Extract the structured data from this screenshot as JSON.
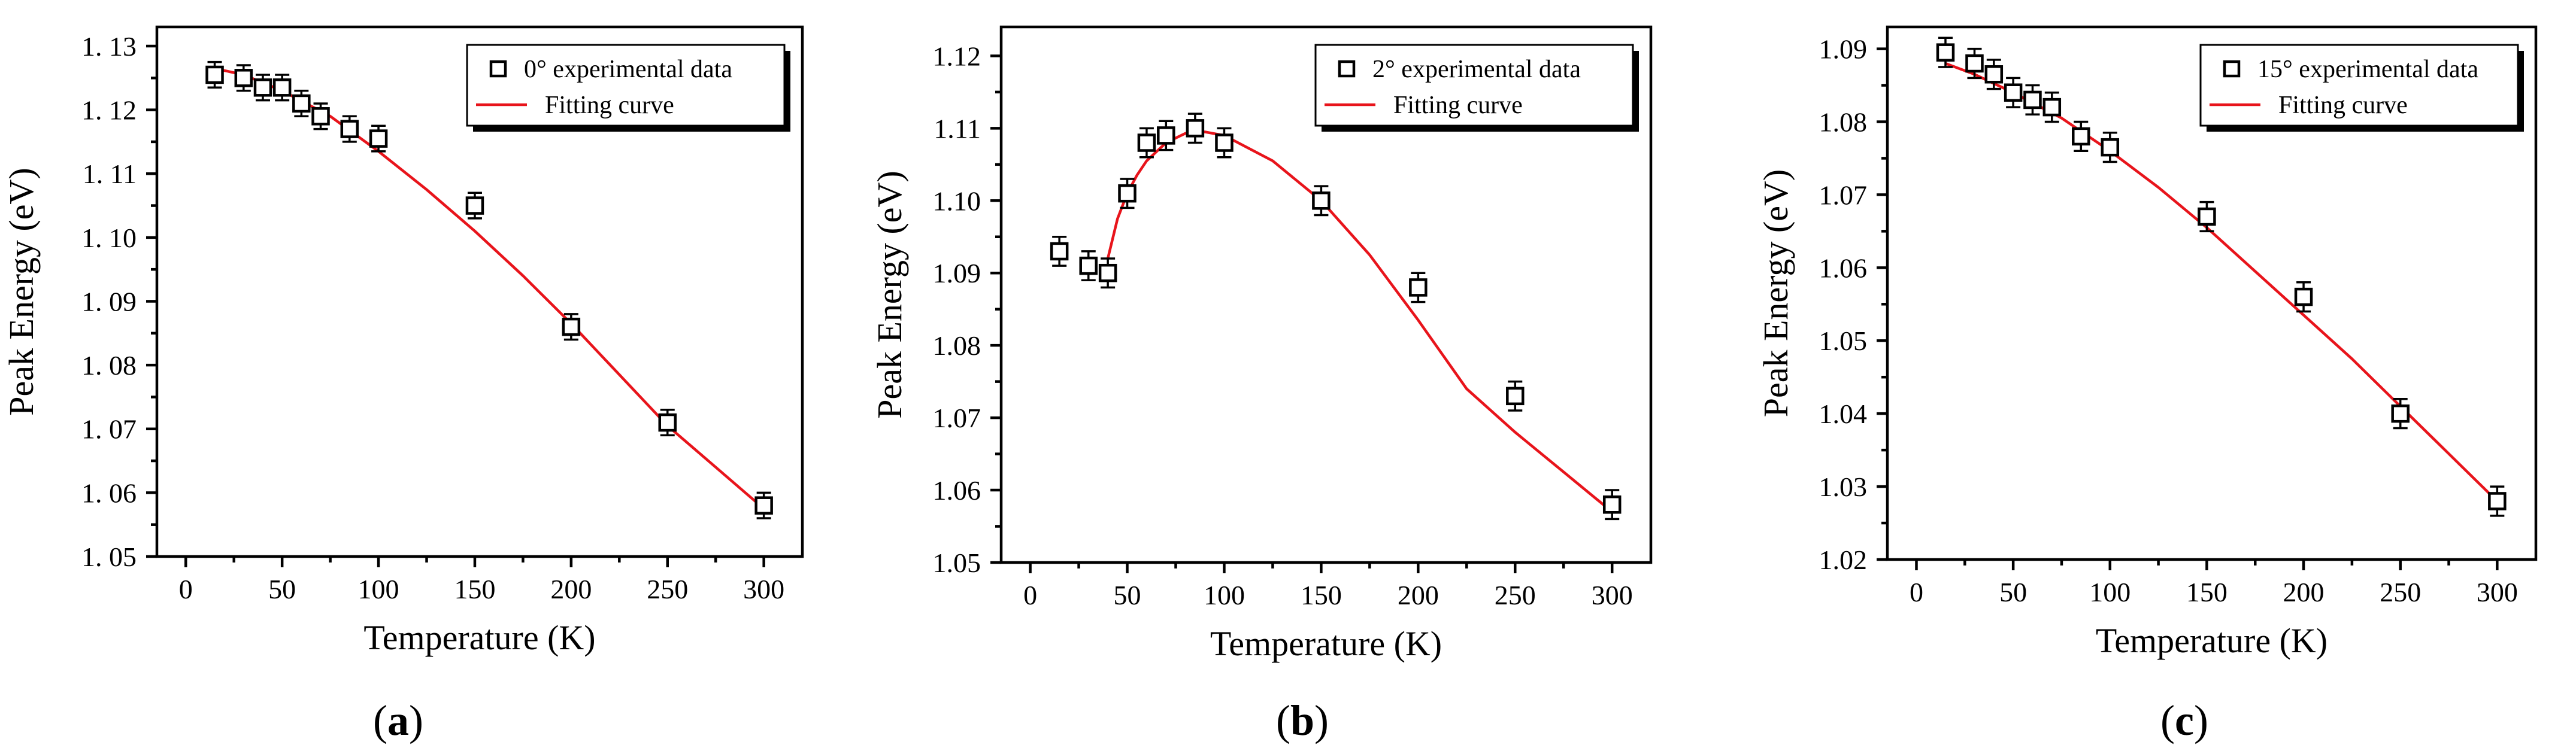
{
  "chart_data": [
    {
      "id": "a",
      "type": "scatter",
      "panel_label": "a",
      "xlabel": "Temperature (K)",
      "ylabel": "Peak Energy (eV)",
      "xlim": [
        -15,
        320
      ],
      "ylim": [
        1.05,
        1.133
      ],
      "xticks": [
        0,
        50,
        100,
        150,
        200,
        250,
        300
      ],
      "yticks": [
        1.05,
        1.06,
        1.07,
        1.08,
        1.09,
        1.1,
        1.11,
        1.12,
        1.13
      ],
      "ytick_labels": [
        "1. 05",
        "1. 06",
        "1. 07",
        "1. 08",
        "1. 09",
        "1. 10",
        "1. 11",
        "1. 12",
        "1. 13"
      ],
      "legend": {
        "position": "top-right",
        "data_label": "0° experimental data",
        "fit_label": "Fitting curve"
      },
      "series": [
        {
          "name": "0° experimental data",
          "kind": "markers",
          "x": [
            15,
            30,
            40,
            50,
            60,
            70,
            85,
            100,
            150,
            200,
            250,
            300
          ],
          "y": [
            1.1255,
            1.125,
            1.1235,
            1.1235,
            1.121,
            1.119,
            1.117,
            1.1155,
            1.105,
            1.086,
            1.071,
            1.058
          ],
          "err": [
            0.002,
            0.002,
            0.002,
            0.002,
            0.002,
            0.002,
            0.002,
            0.002,
            0.002,
            0.002,
            0.002,
            0.002
          ]
        },
        {
          "name": "Fitting curve",
          "kind": "line",
          "color": "#e8141b",
          "x": [
            15,
            30,
            50,
            75,
            100,
            125,
            150,
            175,
            200,
            225,
            250,
            275,
            300
          ],
          "y": [
            1.1265,
            1.1255,
            1.123,
            1.119,
            1.1135,
            1.1075,
            1.101,
            1.094,
            1.0865,
            1.0785,
            1.0705,
            1.064,
            1.0575
          ]
        }
      ]
    },
    {
      "id": "b",
      "type": "scatter",
      "panel_label": "b",
      "xlabel": "Temperature (K)",
      "ylabel": "Peak Energy (eV)",
      "xlim": [
        -15,
        320
      ],
      "ylim": [
        1.05,
        1.124
      ],
      "xticks": [
        0,
        50,
        100,
        150,
        200,
        250,
        300
      ],
      "yticks": [
        1.05,
        1.06,
        1.07,
        1.08,
        1.09,
        1.1,
        1.11,
        1.12
      ],
      "ytick_labels": [
        "1.05",
        "1.06",
        "1.07",
        "1.08",
        "1.09",
        "1.10",
        "1.11",
        "1.12"
      ],
      "legend": {
        "position": "top-right",
        "data_label": "2° experimental data",
        "fit_label": "Fitting curve"
      },
      "series": [
        {
          "name": "2° experimental data",
          "kind": "markers",
          "x": [
            15,
            30,
            40,
            50,
            60,
            70,
            85,
            100,
            150,
            200,
            250,
            300
          ],
          "y": [
            1.093,
            1.091,
            1.09,
            1.101,
            1.108,
            1.109,
            1.11,
            1.108,
            1.1,
            1.088,
            1.073,
            1.058
          ],
          "err": [
            0.002,
            0.002,
            0.002,
            0.002,
            0.002,
            0.002,
            0.002,
            0.002,
            0.002,
            0.002,
            0.002,
            0.002
          ]
        },
        {
          "name": "Fitting curve",
          "kind": "line",
          "color": "#e8141b",
          "x": [
            40,
            45,
            50,
            55,
            60,
            70,
            80,
            90,
            100,
            125,
            150,
            175,
            200,
            225,
            250,
            275,
            300
          ],
          "y": [
            1.092,
            1.0975,
            1.101,
            1.1035,
            1.1055,
            1.108,
            1.1093,
            1.1095,
            1.109,
            1.1055,
            1.1,
            1.0925,
            1.0835,
            1.074,
            1.068,
            1.0625,
            1.057
          ]
        }
      ]
    },
    {
      "id": "c",
      "type": "scatter",
      "panel_label": "c",
      "xlabel": "Temperature (K)",
      "ylabel": "Peak Energy (eV)",
      "xlim": [
        -15,
        320
      ],
      "ylim": [
        1.02,
        1.093
      ],
      "xticks": [
        0,
        50,
        100,
        150,
        200,
        250,
        300
      ],
      "yticks": [
        1.02,
        1.03,
        1.04,
        1.05,
        1.06,
        1.07,
        1.08,
        1.09
      ],
      "ytick_labels": [
        "1.02",
        "1.03",
        "1.04",
        "1.05",
        "1.06",
        "1.07",
        "1.08",
        "1.09"
      ],
      "legend": {
        "position": "top-right",
        "data_label": "15° experimental data",
        "fit_label": "Fitting curve"
      },
      "series": [
        {
          "name": "15° experimental data",
          "kind": "markers",
          "x": [
            15,
            30,
            40,
            50,
            60,
            70,
            85,
            100,
            150,
            200,
            250,
            300
          ],
          "y": [
            1.0895,
            1.088,
            1.0865,
            1.084,
            1.083,
            1.082,
            1.078,
            1.0765,
            1.067,
            1.056,
            1.04,
            1.028
          ],
          "err": [
            0.002,
            0.002,
            0.002,
            0.002,
            0.002,
            0.002,
            0.002,
            0.002,
            0.002,
            0.002,
            0.002,
            0.002
          ]
        },
        {
          "name": "Fitting curve",
          "kind": "line",
          "color": "#e8141b",
          "x": [
            15,
            30,
            50,
            75,
            100,
            125,
            150,
            175,
            200,
            225,
            250,
            275,
            300
          ],
          "y": [
            1.088,
            1.0865,
            1.084,
            1.0805,
            1.076,
            1.071,
            1.0655,
            1.0595,
            1.0535,
            1.0475,
            1.041,
            1.0345,
            1.028
          ]
        }
      ]
    }
  ]
}
